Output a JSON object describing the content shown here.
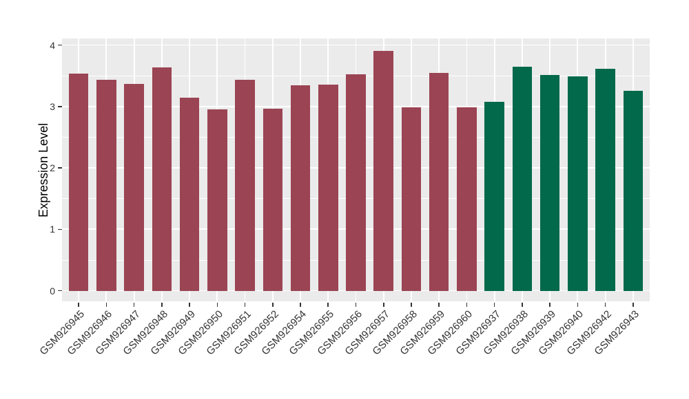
{
  "figure": {
    "background": "#ffffff",
    "panel_background": "#ebebeb",
    "grid_color": "#ffffff",
    "tick_mark_color": "#333333",
    "tick_label_color": "#333333",
    "axis_title_color": "#000000"
  },
  "chart_data": {
    "type": "bar",
    "title": "",
    "xlabel": "",
    "ylabel": "Expression Level",
    "ylim": [
      -0.2,
      4.1
    ],
    "yticks": [
      0,
      1,
      2,
      3,
      4
    ],
    "yminor": [
      0.5,
      1.5,
      2.5,
      3.5
    ],
    "grid": "on",
    "legend_position": "none",
    "categories": [
      "GSM926945",
      "GSM926946",
      "GSM926947",
      "GSM926948",
      "GSM926949",
      "GSM926950",
      "GSM926951",
      "GSM926952",
      "GSM926954",
      "GSM926955",
      "GSM926956",
      "GSM926957",
      "GSM926958",
      "GSM926959",
      "GSM926960",
      "GSM926937",
      "GSM926938",
      "GSM926939",
      "GSM926940",
      "GSM926942",
      "GSM926943"
    ],
    "values": [
      3.54,
      3.44,
      3.37,
      3.64,
      3.14,
      2.95,
      3.43,
      2.96,
      3.34,
      3.36,
      3.52,
      3.91,
      2.99,
      3.55,
      2.99,
      3.08,
      3.65,
      3.51,
      3.49,
      3.61,
      3.25
    ],
    "groups": [
      "group1",
      "group1",
      "group1",
      "group1",
      "group1",
      "group1",
      "group1",
      "group1",
      "group1",
      "group1",
      "group1",
      "group1",
      "group1",
      "group1",
      "group1",
      "group2",
      "group2",
      "group2",
      "group2",
      "group2",
      "group2"
    ],
    "group_colors": {
      "group1": "#9b4453",
      "group2": "#02694b"
    }
  }
}
